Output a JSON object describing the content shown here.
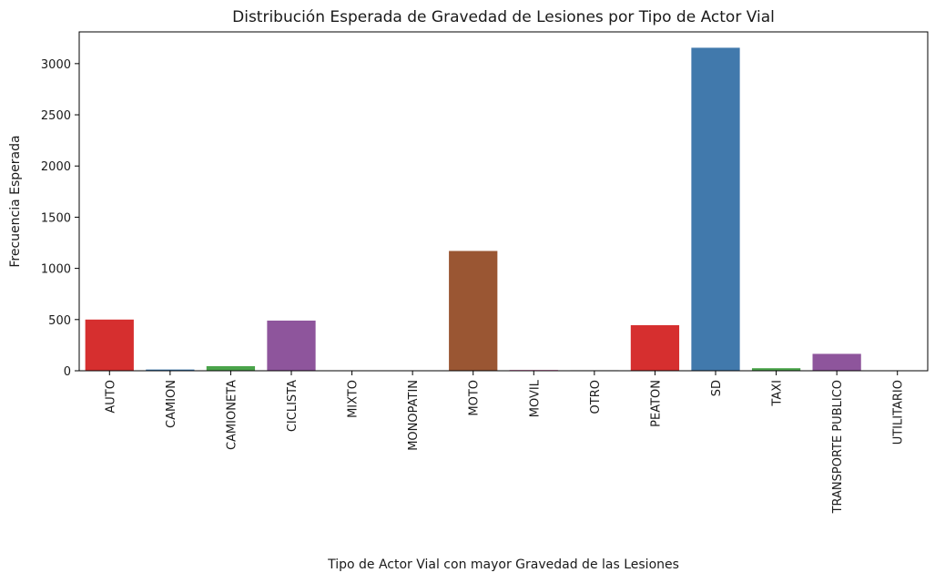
{
  "chart_data": {
    "type": "bar",
    "title": "Distribución Esperada de Gravedad de Lesiones por Tipo de Actor Vial",
    "xlabel": "Tipo de Actor Vial con mayor Gravedad de las Lesiones",
    "ylabel": "Frecuencia Esperada",
    "categories": [
      "AUTO",
      "CAMION",
      "CAMIONETA",
      "CICLISTA",
      "MIXTO",
      "MONOPATIN",
      "MOTO",
      "MOVIL",
      "OTRO",
      "PEATON",
      "SD",
      "TAXI",
      "TRANSPORTE PUBLICO",
      "UTILITARIO"
    ],
    "values": [
      500,
      12,
      45,
      490,
      3,
      3,
      1170,
      8,
      5,
      445,
      3155,
      25,
      165,
      3
    ],
    "colors": [
      "#d62f2f",
      "#3a7ab3",
      "#4aa44a",
      "#8e559c",
      "#ff7f0e",
      "#ffd92f",
      "#9a5633",
      "#e279b8",
      "#999999",
      "#d62f2f",
      "#4179ac",
      "#4aa44a",
      "#8e559c",
      "#ff7f0e"
    ],
    "ylim": [
      0,
      3310
    ],
    "yticks": [
      0,
      500,
      1000,
      1500,
      2000,
      2500,
      3000
    ],
    "grid": false,
    "legend": "none"
  }
}
